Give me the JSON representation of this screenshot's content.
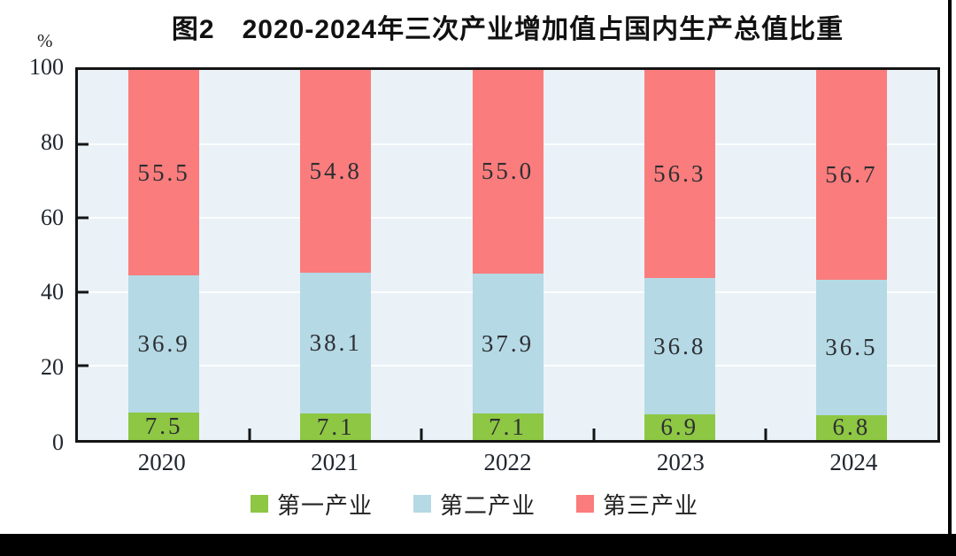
{
  "title": "图2　2020-2024年三次产业增加值占国内生产总值比重",
  "y_axis": {
    "unit": "%",
    "tick_values": [
      100,
      80,
      60,
      40,
      20,
      0
    ]
  },
  "chart_data": {
    "type": "bar",
    "stacked": true,
    "title": "图2　2020-2024年三次产业增加值占国内生产总值比重",
    "categories": [
      "2020",
      "2021",
      "2022",
      "2023",
      "2024"
    ],
    "series": [
      {
        "name": "第一产业",
        "color": "#8dc743",
        "values": [
          7.5,
          7.1,
          7.1,
          6.9,
          6.8
        ]
      },
      {
        "name": "第二产业",
        "color": "#b5d9e5",
        "values": [
          36.9,
          38.1,
          37.9,
          36.8,
          36.5
        ]
      },
      {
        "name": "第三产业",
        "color": "#fa7c7c",
        "values": [
          55.5,
          54.8,
          55.0,
          56.3,
          56.7
        ]
      }
    ],
    "ylabel": "%",
    "ylim": [
      0,
      100
    ],
    "grid": true,
    "gridline_values": [
      20,
      40,
      60,
      80
    ],
    "legend_position": "bottom",
    "colors": {
      "plot_background": "#eaf2f7",
      "gridline": "#fbfdfe",
      "frame": "#141414",
      "label_text": "#2d2f33"
    }
  }
}
